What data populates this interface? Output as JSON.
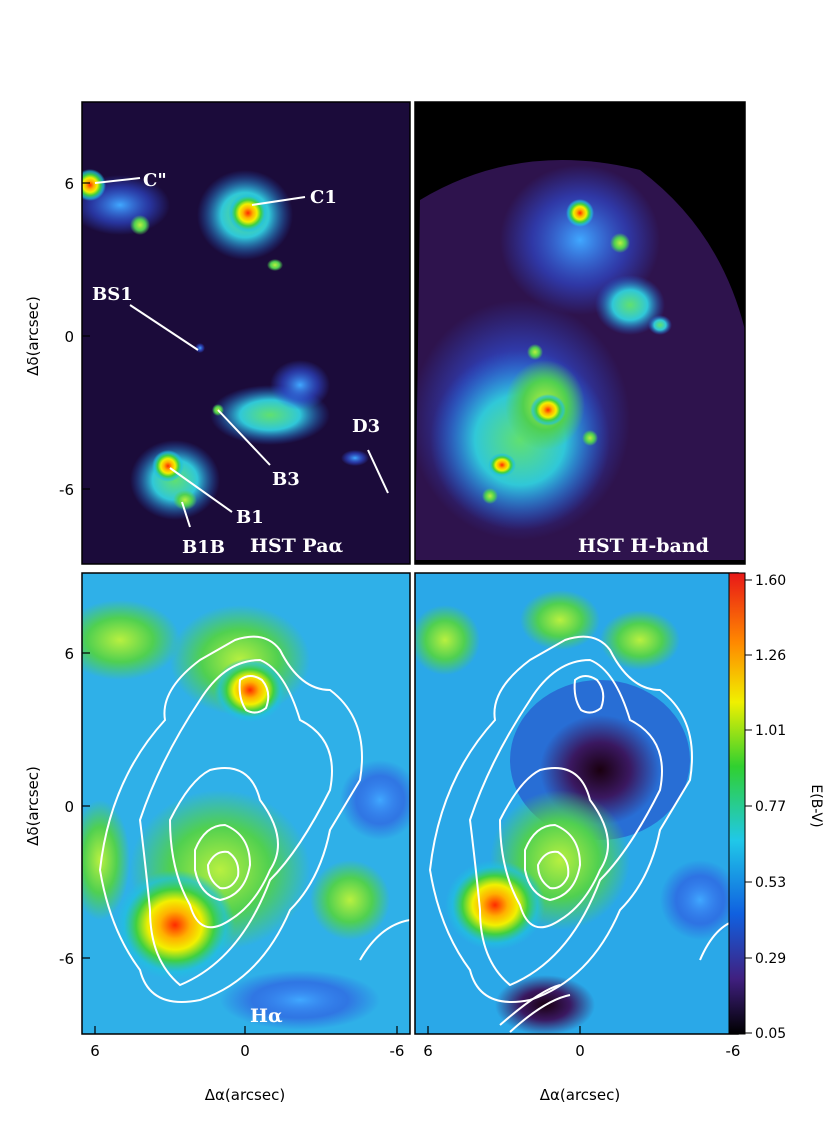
{
  "figure": {
    "panels": [
      {
        "id": "top-left",
        "label": "HST Paα"
      },
      {
        "id": "top-right",
        "label": "HST H-band"
      },
      {
        "id": "bottom-left",
        "label": "Hα"
      },
      {
        "id": "bottom-right",
        "label": ""
      }
    ],
    "annotations": [
      "C\"",
      "C1",
      "BS1",
      "B3",
      "D3",
      "B1",
      "B1B"
    ],
    "y_axis_label": "Δδ(arcsec)",
    "x_axis_label": "Δα(arcsec)",
    "y_ticks": [
      "6",
      "0",
      "-6"
    ],
    "x_ticks": [
      "6",
      "0",
      "-6"
    ],
    "colorbar": {
      "label": "E(B-V)",
      "ticks": [
        "1.60",
        "1.26",
        "1.01",
        "0.77",
        "0.53",
        "0.29",
        "0.05"
      ]
    },
    "colors": {
      "peak": "#e8301a",
      "mid": "#35c23a",
      "low": "#1a7ae6",
      "bg": "#1b0b3a",
      "contour": "#ffffff"
    }
  }
}
